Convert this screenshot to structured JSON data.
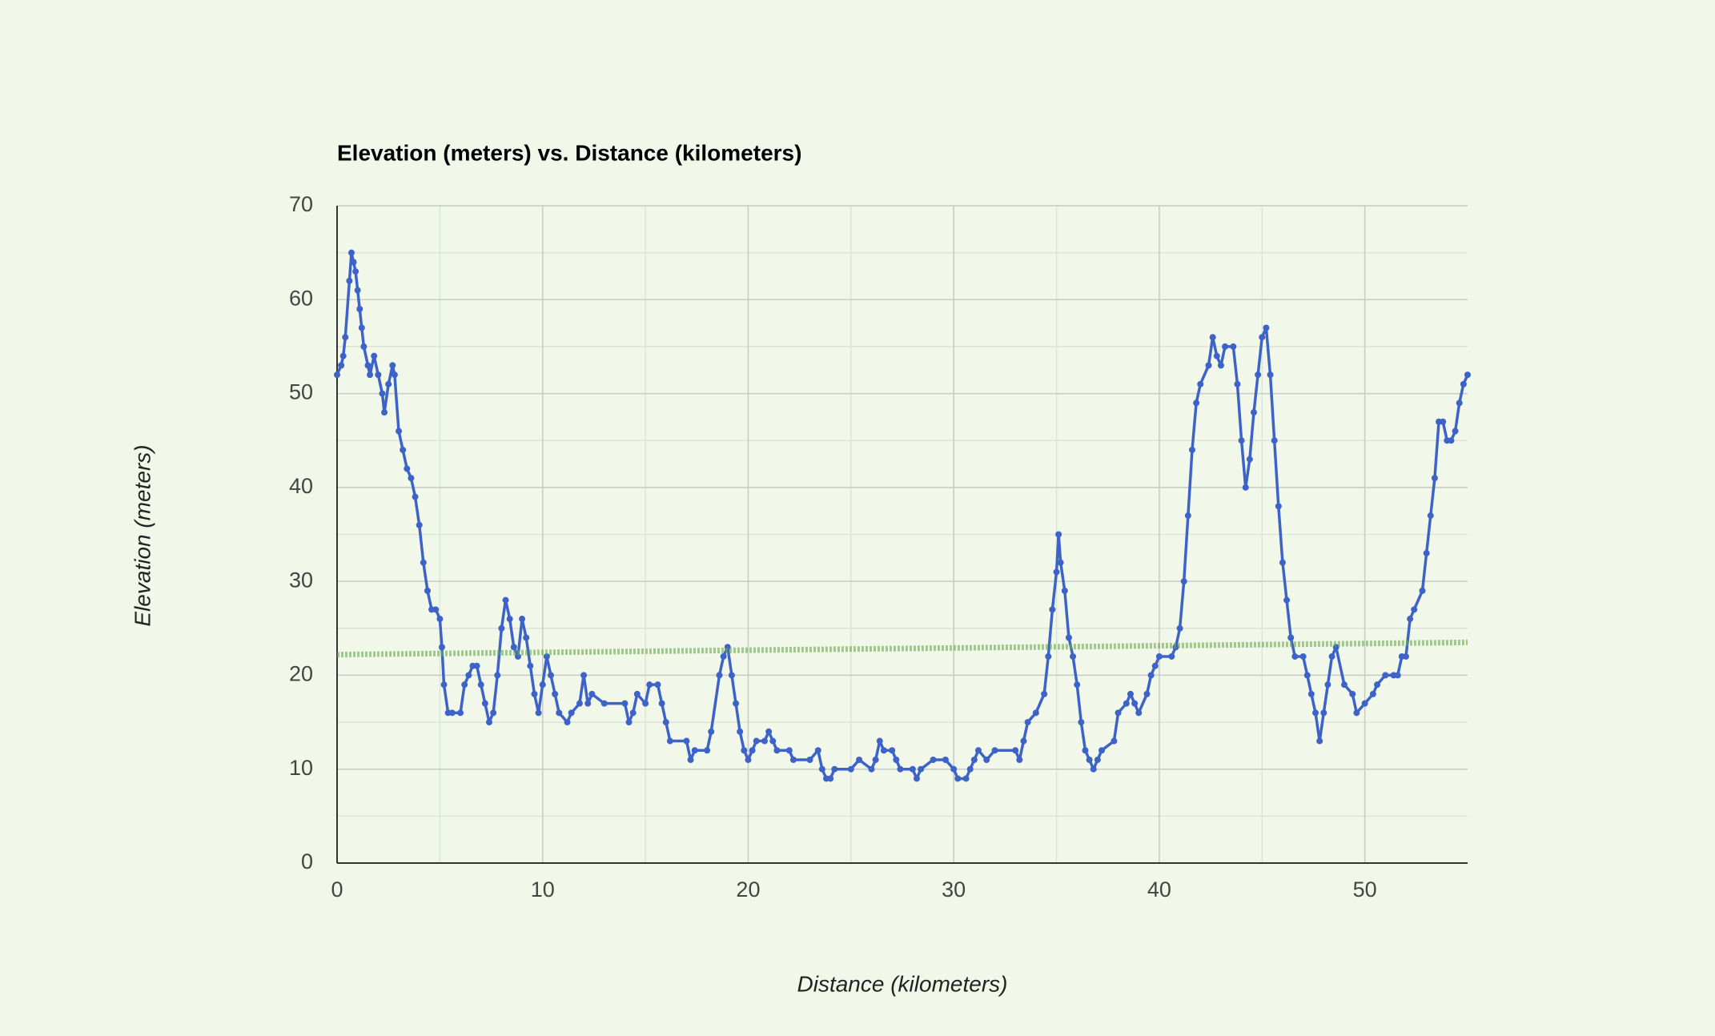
{
  "chart_data": {
    "type": "line",
    "title": "Elevation (meters) vs. Distance (kilometers)",
    "x_label": "Distance (kilometers)",
    "y_label": "Elevation (meters)",
    "x": [
      0,
      0.2,
      0.3,
      0.4,
      0.6,
      0.7,
      0.8,
      0.9,
      1.0,
      1.1,
      1.2,
      1.3,
      1.5,
      1.6,
      1.8,
      2.0,
      2.2,
      2.3,
      2.5,
      2.7,
      2.8,
      3.0,
      3.2,
      3.4,
      3.6,
      3.8,
      4.0,
      4.2,
      4.4,
      4.6,
      4.8,
      5.0,
      5.1,
      5.2,
      5.4,
      5.6,
      6.0,
      6.2,
      6.4,
      6.6,
      6.8,
      7.0,
      7.2,
      7.4,
      7.6,
      7.8,
      8.0,
      8.2,
      8.4,
      8.6,
      8.8,
      9.0,
      9.2,
      9.4,
      9.6,
      9.8,
      10.0,
      10.2,
      10.4,
      10.6,
      10.8,
      11.2,
      11.4,
      11.8,
      12.0,
      12.2,
      12.4,
      13.0,
      14.0,
      14.2,
      14.4,
      14.6,
      15.0,
      15.2,
      15.6,
      15.8,
      16.0,
      16.2,
      17.0,
      17.2,
      17.4,
      18.0,
      18.2,
      18.6,
      18.8,
      19.0,
      19.2,
      19.4,
      19.6,
      19.8,
      20.0,
      20.2,
      20.4,
      20.8,
      21.0,
      21.2,
      21.4,
      22.0,
      22.2,
      23.0,
      23.4,
      23.6,
      23.8,
      24.0,
      24.2,
      25.0,
      25.4,
      26.0,
      26.2,
      26.4,
      26.6,
      27.0,
      27.2,
      27.4,
      28.0,
      28.2,
      28.4,
      29.0,
      29.6,
      30.0,
      30.2,
      30.6,
      30.8,
      31.0,
      31.2,
      31.6,
      32.0,
      33.0,
      33.2,
      33.4,
      33.6,
      34.0,
      34.4,
      34.6,
      34.8,
      35.0,
      35.1,
      35.2,
      35.4,
      35.6,
      35.8,
      36.0,
      36.2,
      36.4,
      36.6,
      36.8,
      37.0,
      37.2,
      37.8,
      38.0,
      38.4,
      38.6,
      38.8,
      39.0,
      39.4,
      39.6,
      39.8,
      40.0,
      40.6,
      40.8,
      41.0,
      41.2,
      41.4,
      41.6,
      41.8,
      42.0,
      42.4,
      42.6,
      42.8,
      43.0,
      43.2,
      43.6,
      43.8,
      44.0,
      44.2,
      44.4,
      44.6,
      44.8,
      45.0,
      45.2,
      45.4,
      45.6,
      45.8,
      46.0,
      46.2,
      46.4,
      46.6,
      47.0,
      47.2,
      47.4,
      47.6,
      47.8,
      48.0,
      48.2,
      48.4,
      48.6,
      49.0,
      49.4,
      49.6,
      50.0,
      50.4,
      50.6,
      51.0,
      51.4,
      51.6,
      51.8,
      52.0,
      52.2,
      52.4,
      52.8,
      53.0,
      53.2,
      53.4,
      53.6,
      53.8,
      54.0,
      54.2,
      54.4,
      54.6,
      54.8,
      55.0
    ],
    "series": [
      {
        "color": "#3d63c8",
        "values": [
          52,
          53,
          54,
          56,
          62,
          65,
          64,
          63,
          61,
          59,
          57,
          55,
          53,
          52,
          54,
          52,
          50,
          48,
          51,
          53,
          52,
          46,
          44,
          42,
          41,
          39,
          36,
          32,
          29,
          27,
          27,
          26,
          23,
          19,
          16,
          16,
          16,
          19,
          20,
          21,
          21,
          19,
          17,
          15,
          16,
          20,
          25,
          28,
          26,
          23,
          22,
          26,
          24,
          21,
          18,
          16,
          19,
          22,
          20,
          18,
          16,
          15,
          16,
          17,
          20,
          17,
          18,
          17,
          17,
          15,
          16,
          18,
          17,
          19,
          19,
          17,
          15,
          13,
          13,
          11,
          12,
          12,
          14,
          20,
          22,
          23,
          20,
          17,
          14,
          12,
          11,
          12,
          13,
          13,
          14,
          13,
          12,
          12,
          11,
          11,
          12,
          10,
          9,
          9,
          10,
          10,
          11,
          10,
          11,
          13,
          12,
          12,
          11,
          10,
          10,
          9,
          10,
          11,
          11,
          10,
          9,
          9,
          10,
          11,
          12,
          11,
          12,
          12,
          11,
          13,
          15,
          16,
          18,
          22,
          27,
          31,
          35,
          32,
          29,
          24,
          22,
          19,
          15,
          12,
          11,
          10,
          11,
          12,
          13,
          16,
          17,
          18,
          17,
          16,
          18,
          20,
          21,
          22,
          22,
          23,
          25,
          30,
          37,
          44,
          49,
          51,
          53,
          56,
          54,
          53,
          55,
          55,
          51,
          45,
          40,
          43,
          48,
          52,
          56,
          57,
          52,
          45,
          38,
          32,
          28,
          24,
          22,
          22,
          20,
          18,
          16,
          13,
          16,
          19,
          22,
          23,
          19,
          18,
          16,
          17,
          18,
          19,
          20,
          20,
          20,
          22,
          22,
          26,
          27,
          29,
          33,
          37,
          41,
          47,
          47,
          45,
          45,
          46,
          49,
          51,
          52
        ]
      }
    ],
    "trendline": {
      "x": [
        0,
        55
      ],
      "values": [
        22.2,
        23.5
      ],
      "color": "#6aa84f"
    },
    "xlim": [
      0,
      55
    ],
    "xticks": [
      0,
      10,
      20,
      30,
      40,
      50
    ],
    "xminorticks": [
      5,
      15,
      25,
      35,
      45
    ],
    "ylim": [
      0,
      70
    ],
    "yticks": [
      0,
      10,
      20,
      30,
      40,
      50,
      60,
      70
    ],
    "yminorticks": [
      5,
      15,
      25,
      35,
      45,
      55,
      65
    ],
    "grid": true
  }
}
